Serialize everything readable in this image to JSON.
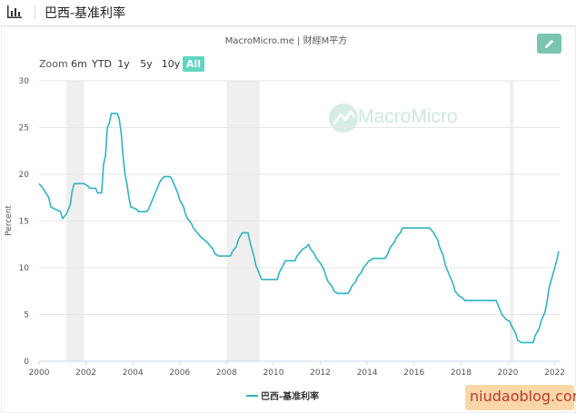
{
  "header": {
    "title": "巴西-基准利率",
    "icon": "bar-chart-icon"
  },
  "toolbar": {
    "edit_icon": "pencil-icon",
    "accent_color": "#79c5b0"
  },
  "zoom": {
    "label": "Zoom",
    "options": [
      "6m",
      "YTD",
      "1y",
      "5y",
      "10y",
      "All"
    ],
    "selected": "All",
    "active_color": "#5fd6c3"
  },
  "watermark": {
    "text": "MacroMicro",
    "icon": "macromicro-logo-icon"
  },
  "blog_watermark": "niudaoblog.com",
  "chart_data": {
    "type": "line",
    "title": "MacroMicro.me | 财經M平方",
    "xlabel": "",
    "ylabel": "Percent",
    "xlim": [
      "2000-01",
      "2022-04"
    ],
    "ylim": [
      0,
      30
    ],
    "y_ticks": [
      0,
      5,
      10,
      15,
      20,
      25,
      30
    ],
    "x_ticks": [
      "2000",
      "2002",
      "2004",
      "2006",
      "2008",
      "2010",
      "2012",
      "2014",
      "2016",
      "2018",
      "2020",
      "2022"
    ],
    "grid": true,
    "legend_position": "bottom-center",
    "line_color": "#2fb3c4",
    "recession_color": "#efefef",
    "recession_bands": [
      [
        "2001-03",
        "2001-12"
      ],
      [
        "2008-01",
        "2009-06"
      ],
      [
        "2020-02",
        "2020-04"
      ]
    ],
    "series": [
      {
        "name": "巴西-基准利率",
        "points": [
          [
            "2000-01",
            19.0
          ],
          [
            "2000-03",
            18.5
          ],
          [
            "2000-06",
            17.5
          ],
          [
            "2000-07",
            16.5
          ],
          [
            "2000-12",
            16.0
          ],
          [
            "2001-01",
            15.25
          ],
          [
            "2001-03",
            15.75
          ],
          [
            "2001-05",
            16.75
          ],
          [
            "2001-06",
            18.25
          ],
          [
            "2001-07",
            19.0
          ],
          [
            "2001-12",
            19.0
          ],
          [
            "2002-02",
            18.75
          ],
          [
            "2002-03",
            18.5
          ],
          [
            "2002-06",
            18.5
          ],
          [
            "2002-07",
            18.0
          ],
          [
            "2002-09",
            18.0
          ],
          [
            "2002-10",
            21.0
          ],
          [
            "2002-11",
            22.0
          ],
          [
            "2002-12",
            25.0
          ],
          [
            "2003-01",
            25.5
          ],
          [
            "2003-02",
            26.5
          ],
          [
            "2003-05",
            26.5
          ],
          [
            "2003-06",
            26.0
          ],
          [
            "2003-07",
            24.5
          ],
          [
            "2003-08",
            22.0
          ],
          [
            "2003-09",
            20.0
          ],
          [
            "2003-10",
            19.0
          ],
          [
            "2003-11",
            17.5
          ],
          [
            "2003-12",
            16.5
          ],
          [
            "2004-03",
            16.25
          ],
          [
            "2004-04",
            16.0
          ],
          [
            "2004-08",
            16.0
          ],
          [
            "2004-09",
            16.25
          ],
          [
            "2004-10",
            16.75
          ],
          [
            "2004-11",
            17.25
          ],
          [
            "2004-12",
            17.75
          ],
          [
            "2005-01",
            18.25
          ],
          [
            "2005-03",
            19.25
          ],
          [
            "2005-05",
            19.75
          ],
          [
            "2005-08",
            19.75
          ],
          [
            "2005-09",
            19.5
          ],
          [
            "2005-10",
            19.0
          ],
          [
            "2005-11",
            18.5
          ],
          [
            "2005-12",
            18.0
          ],
          [
            "2006-01",
            17.25
          ],
          [
            "2006-03",
            16.5
          ],
          [
            "2006-04",
            15.75
          ],
          [
            "2006-05",
            15.25
          ],
          [
            "2006-07",
            14.75
          ],
          [
            "2006-08",
            14.25
          ],
          [
            "2006-10",
            13.75
          ],
          [
            "2006-12",
            13.25
          ],
          [
            "2007-03",
            12.75
          ],
          [
            "2007-04",
            12.5
          ],
          [
            "2007-06",
            12.0
          ],
          [
            "2007-07",
            11.5
          ],
          [
            "2007-09",
            11.25
          ],
          [
            "2008-03",
            11.25
          ],
          [
            "2008-04",
            11.75
          ],
          [
            "2008-06",
            12.25
          ],
          [
            "2008-07",
            13.0
          ],
          [
            "2008-09",
            13.75
          ],
          [
            "2008-12",
            13.75
          ],
          [
            "2009-01",
            12.75
          ],
          [
            "2009-03",
            11.25
          ],
          [
            "2009-04",
            10.25
          ],
          [
            "2009-06",
            9.25
          ],
          [
            "2009-07",
            8.75
          ],
          [
            "2010-03",
            8.75
          ],
          [
            "2010-04",
            9.5
          ],
          [
            "2010-06",
            10.25
          ],
          [
            "2010-07",
            10.75
          ],
          [
            "2010-12",
            10.75
          ],
          [
            "2011-01",
            11.25
          ],
          [
            "2011-03",
            11.75
          ],
          [
            "2011-04",
            12.0
          ],
          [
            "2011-06",
            12.25
          ],
          [
            "2011-07",
            12.5
          ],
          [
            "2011-08",
            12.0
          ],
          [
            "2011-10",
            11.5
          ],
          [
            "2011-11",
            11.0
          ],
          [
            "2012-01",
            10.5
          ],
          [
            "2012-03",
            9.75
          ],
          [
            "2012-04",
            9.0
          ],
          [
            "2012-05",
            8.5
          ],
          [
            "2012-07",
            8.0
          ],
          [
            "2012-08",
            7.5
          ],
          [
            "2012-10",
            7.25
          ],
          [
            "2013-03",
            7.25
          ],
          [
            "2013-04",
            7.5
          ],
          [
            "2013-05",
            8.0
          ],
          [
            "2013-07",
            8.5
          ],
          [
            "2013-08",
            9.0
          ],
          [
            "2013-10",
            9.5
          ],
          [
            "2013-11",
            10.0
          ],
          [
            "2014-01",
            10.5
          ],
          [
            "2014-02",
            10.75
          ],
          [
            "2014-04",
            11.0
          ],
          [
            "2014-10",
            11.0
          ],
          [
            "2014-11",
            11.25
          ],
          [
            "2014-12",
            11.75
          ],
          [
            "2015-01",
            12.25
          ],
          [
            "2015-03",
            12.75
          ],
          [
            "2015-04",
            13.25
          ],
          [
            "2015-06",
            13.75
          ],
          [
            "2015-07",
            14.25
          ],
          [
            "2016-09",
            14.25
          ],
          [
            "2016-10",
            14.0
          ],
          [
            "2016-11",
            13.75
          ],
          [
            "2017-01",
            13.0
          ],
          [
            "2017-02",
            12.25
          ],
          [
            "2017-04",
            11.25
          ],
          [
            "2017-05",
            10.25
          ],
          [
            "2017-07",
            9.25
          ],
          [
            "2017-09",
            8.25
          ],
          [
            "2017-10",
            7.5
          ],
          [
            "2017-12",
            7.0
          ],
          [
            "2018-02",
            6.75
          ],
          [
            "2018-03",
            6.5
          ],
          [
            "2019-07",
            6.5
          ],
          [
            "2019-08",
            6.0
          ],
          [
            "2019-09",
            5.5
          ],
          [
            "2019-10",
            5.0
          ],
          [
            "2019-12",
            4.5
          ],
          [
            "2020-02",
            4.25
          ],
          [
            "2020-03",
            3.75
          ],
          [
            "2020-05",
            3.0
          ],
          [
            "2020-06",
            2.25
          ],
          [
            "2020-08",
            2.0
          ],
          [
            "2021-02",
            2.0
          ],
          [
            "2021-03",
            2.75
          ],
          [
            "2021-05",
            3.5
          ],
          [
            "2021-06",
            4.25
          ],
          [
            "2021-08",
            5.25
          ],
          [
            "2021-09",
            6.25
          ],
          [
            "2021-10",
            7.75
          ],
          [
            "2021-12",
            9.25
          ],
          [
            "2022-02",
            10.75
          ],
          [
            "2022-03",
            11.75
          ]
        ]
      }
    ]
  }
}
